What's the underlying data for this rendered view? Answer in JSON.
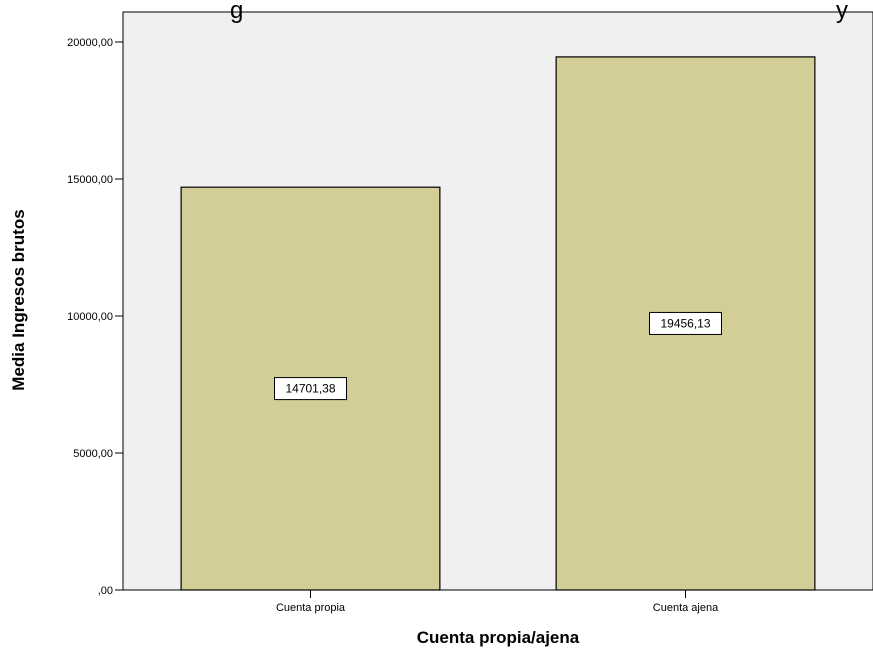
{
  "chart_data": {
    "type": "bar",
    "title": "g",
    "title_right": "y",
    "xlabel": "Cuenta propia/ajena",
    "ylabel": "Media Ingresos brutos",
    "categories": [
      "Cuenta propia",
      "Cuenta ajena"
    ],
    "values": [
      14701.38,
      19456.13
    ],
    "data_labels": [
      "14701,38",
      "19456,13"
    ],
    "yticks": [
      0,
      5000,
      10000,
      15000,
      20000
    ],
    "ytick_labels": [
      ",00",
      "5000,00",
      "10000,00",
      "15000,00",
      "20000,00"
    ],
    "ylim": [
      0,
      20000
    ],
    "grid": false,
    "colors": {
      "plot_background": "#f0f0f0",
      "bar_fill": "#d3ce97",
      "bar_stroke": "#000000"
    }
  }
}
